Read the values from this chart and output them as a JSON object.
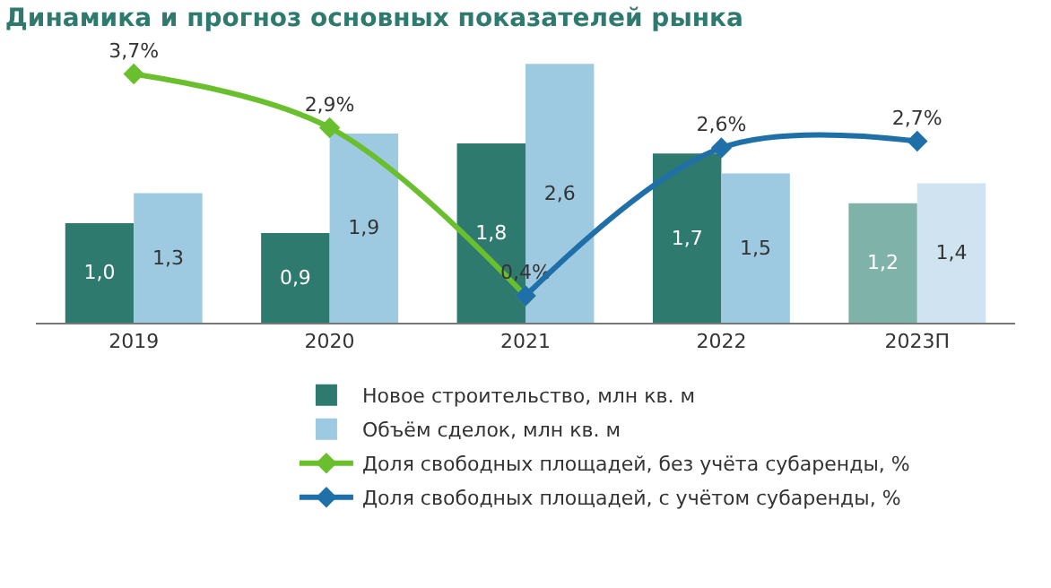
{
  "chart_data": {
    "type": "bar",
    "title": "Динамика и прогноз основных показателей рынка",
    "categories": [
      "2019",
      "2020",
      "2021",
      "2022",
      "2023П"
    ],
    "series": [
      {
        "name": "Новое строительство, млн кв. м",
        "colors": [
          "#2e7a6f",
          "#2e7a6f",
          "#2e7a6f",
          "#2e7a6f",
          "#7fb3aa"
        ],
        "values": [
          1.0,
          0.9,
          1.8,
          1.7,
          1.2
        ],
        "value_labels": [
          "1,0",
          "0,9",
          "1,8",
          "1,7",
          "1,2"
        ]
      },
      {
        "name": "Объём сделок, млн кв. м",
        "colors": [
          "#9ecae1",
          "#9ecae1",
          "#9ecae1",
          "#9ecae1",
          "#cfe4f0"
        ],
        "values": [
          1.3,
          1.9,
          2.6,
          1.5,
          1.4
        ],
        "value_labels": [
          "1,3",
          "1,9",
          "2,6",
          "1,5",
          "1,4"
        ]
      },
      {
        "name": "Доля свободных площадей, без учёта субаренды, %",
        "type": "line",
        "axis": "y2",
        "color": "#6abf2e",
        "marker": "diamond",
        "values": [
          3.7,
          2.9,
          0.4,
          null,
          null
        ],
        "value_labels": [
          "3,7%",
          "2,9%",
          "0,4%",
          null,
          null
        ]
      },
      {
        "name": "Доля свободных площадей, с учётом субаренды, %",
        "type": "line",
        "axis": "y2",
        "color": "#1f6fa8",
        "marker": "diamond",
        "values": [
          null,
          null,
          0.4,
          2.6,
          2.7
        ],
        "value_labels": [
          null,
          null,
          null,
          "2,6%",
          "2,7%"
        ]
      }
    ],
    "legend": "bottom"
  }
}
